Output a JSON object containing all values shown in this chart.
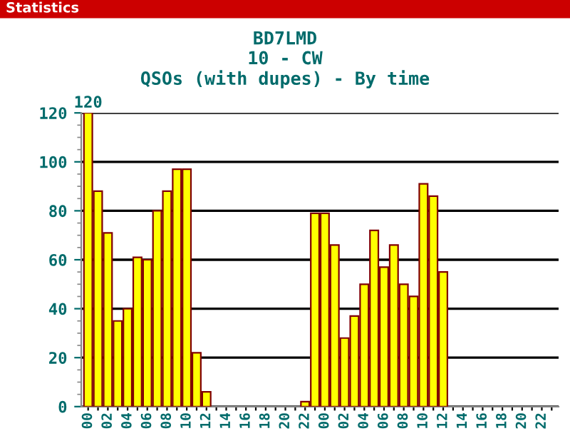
{
  "chart_data": {
    "type": "bar",
    "title": "BD7LMD",
    "subtitle": "10 - CW\nQSOs (with dupes) - By time",
    "annotations": [
      "Statistics"
    ],
    "categories": [
      "00",
      null,
      "02",
      null,
      "04",
      null,
      "06",
      null,
      "08",
      null,
      "10",
      null,
      "12",
      null,
      "14",
      null,
      "16",
      null,
      "18",
      null,
      "20",
      null,
      "22",
      null,
      "00",
      null,
      "02",
      null,
      "04",
      null,
      "06",
      null,
      "08",
      null,
      "10",
      null,
      "12",
      null,
      "14",
      null,
      "16",
      null,
      "18",
      null,
      "20",
      null,
      "22",
      null
    ],
    "values": [
      120,
      88,
      71,
      35,
      40,
      61,
      60,
      80,
      88,
      97,
      97,
      22,
      6,
      0,
      0,
      0,
      0,
      0,
      0,
      0,
      0,
      0,
      2,
      79,
      79,
      66,
      28,
      37,
      50,
      72,
      57,
      66,
      50,
      45,
      91,
      86,
      55,
      0,
      0,
      0,
      0,
      0,
      0,
      0,
      0,
      0,
      0,
      0
    ],
    "value_labels": [
      "120",
      null,
      null,
      null,
      null,
      null,
      null,
      null,
      null,
      null,
      null,
      null,
      null,
      null,
      null,
      null,
      null,
      null,
      null,
      null,
      null,
      null,
      null,
      null,
      null,
      null,
      null,
      null,
      null,
      null,
      null,
      null,
      null,
      null,
      null,
      null,
      null,
      null,
      null,
      null,
      null,
      null,
      null,
      null,
      null,
      null,
      null,
      null
    ],
    "color": "#ffff00",
    "ylim": [
      0,
      120
    ],
    "yticks": [
      0,
      {
        "value": 5,
        "label": null
      },
      {
        "value": 10,
        "label": null
      },
      {
        "value": 15,
        "label": null
      },
      20,
      {
        "value": 25,
        "label": null
      },
      {
        "value": 30,
        "label": null
      },
      {
        "value": 35,
        "label": null
      },
      40,
      {
        "value": 45,
        "label": null
      },
      {
        "value": 50,
        "label": null
      },
      {
        "value": 55,
        "label": null
      },
      60,
      {
        "value": 65,
        "label": null
      },
      {
        "value": 70,
        "label": null
      },
      {
        "value": 75,
        "label": null
      },
      80,
      {
        "value": 85,
        "label": null
      },
      {
        "value": 90,
        "label": null
      },
      {
        "value": 95,
        "label": null
      },
      100,
      {
        "value": 105,
        "label": null
      },
      {
        "value": 110,
        "label": null
      },
      {
        "value": 115,
        "label": null
      },
      120
    ],
    "grid": "y"
  }
}
